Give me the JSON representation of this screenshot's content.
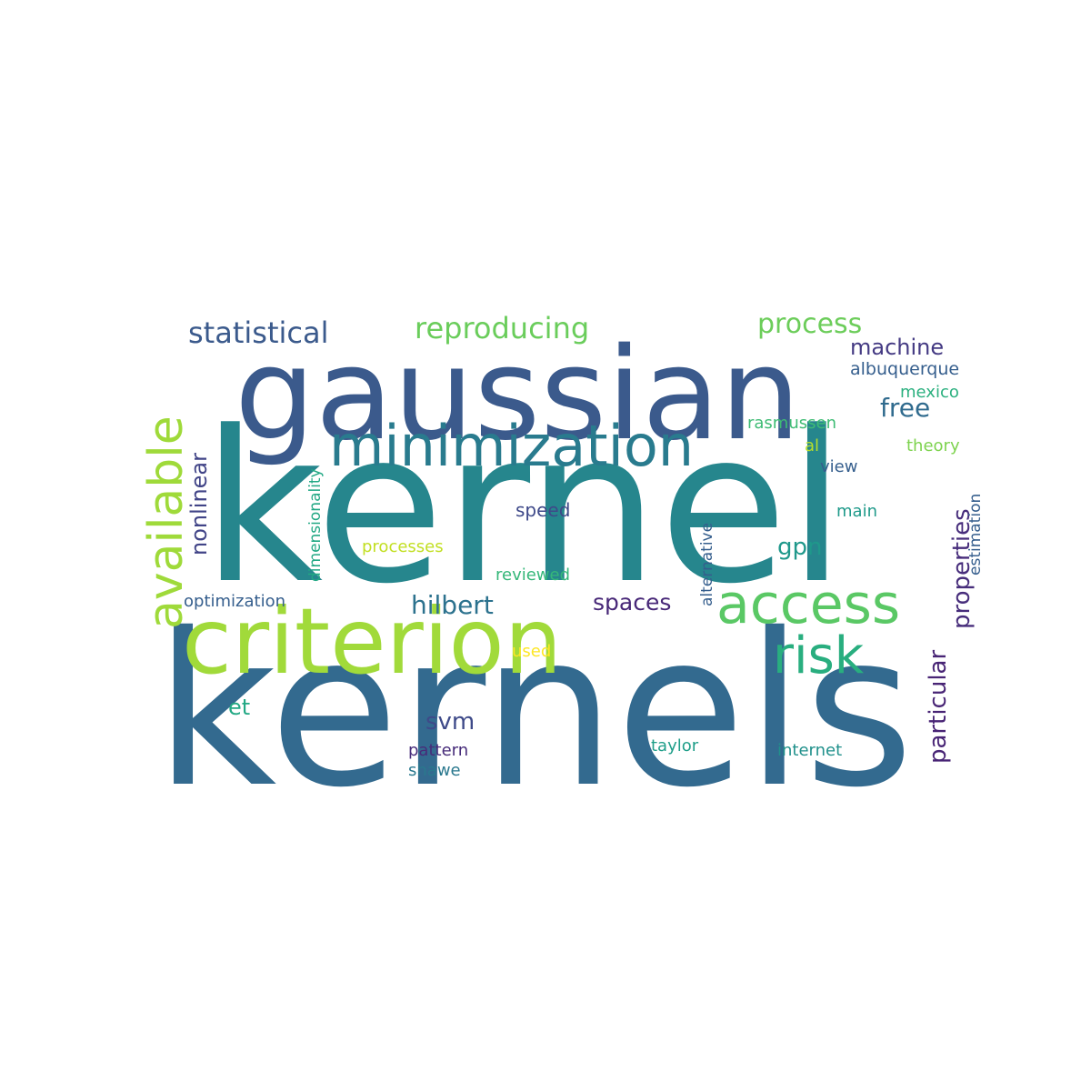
{
  "words": [
    {
      "text": "kernels",
      "color": "#336a8f"
    },
    {
      "text": "kernel",
      "color": "#26868d"
    },
    {
      "text": "gaussian",
      "color": "#3b5a8c"
    },
    {
      "text": "criterion",
      "color": "#a1da3a"
    },
    {
      "text": "minimization",
      "color": "#297b8e"
    },
    {
      "text": "access",
      "color": "#5ac865"
    },
    {
      "text": "available",
      "color": "#9fda3a"
    },
    {
      "text": "risk",
      "color": "#29ae7f"
    },
    {
      "text": "reproducing",
      "color": "#6acd5b"
    },
    {
      "text": "statistical",
      "color": "#3b5a8c"
    },
    {
      "text": "process",
      "color": "#6ccd5a"
    },
    {
      "text": "machine",
      "color": "#443a83"
    },
    {
      "text": "free",
      "color": "#306b8e"
    },
    {
      "text": "albuquerque",
      "color": "#355e8d"
    },
    {
      "text": "mexico",
      "color": "#2bb07f"
    },
    {
      "text": "rasmussen",
      "color": "#3ebc74"
    },
    {
      "text": "theory",
      "color": "#7ed34f"
    },
    {
      "text": "al",
      "color": "#b5de2b"
    },
    {
      "text": "view",
      "color": "#355e8d"
    },
    {
      "text": "properties",
      "color": "#472d7b"
    },
    {
      "text": "estimation",
      "color": "#355e8d"
    },
    {
      "text": "main",
      "color": "#1f9a8a"
    },
    {
      "text": "gpn",
      "color": "#1f988b"
    },
    {
      "text": "particular",
      "color": "#482475"
    },
    {
      "text": "alternative",
      "color": "#355e8d"
    },
    {
      "text": "nonlinear",
      "color": "#414487"
    },
    {
      "text": "dimensionality",
      "color": "#22a884"
    },
    {
      "text": "speed",
      "color": "#3e4989"
    },
    {
      "text": "processes",
      "color": "#c2df23"
    },
    {
      "text": "reviewed",
      "color": "#35b779"
    },
    {
      "text": "optimization",
      "color": "#355e8d"
    },
    {
      "text": "hilbert",
      "color": "#2c728e"
    },
    {
      "text": "spaces",
      "color": "#482878"
    },
    {
      "text": "used",
      "color": "#fde725"
    },
    {
      "text": "et",
      "color": "#22a884"
    },
    {
      "text": "svm",
      "color": "#3e4a89"
    },
    {
      "text": "pattern",
      "color": "#472c7a"
    },
    {
      "text": "shawe",
      "color": "#2a788e"
    },
    {
      "text": "taylor",
      "color": "#1f9e89"
    },
    {
      "text": "internet",
      "color": "#21918c"
    }
  ]
}
